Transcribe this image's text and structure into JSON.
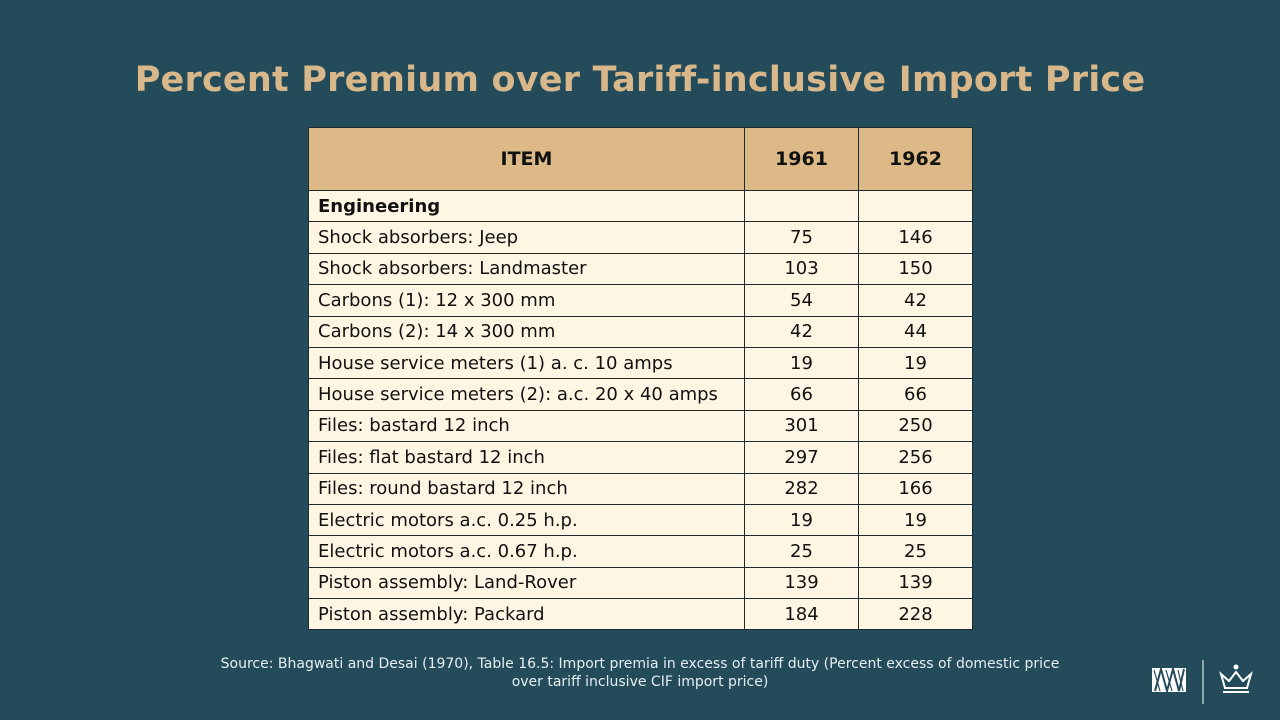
{
  "title": "Percent Premium over Tariff-inclusive Import Price",
  "table": {
    "headers": [
      "ITEM",
      "1961",
      "1962"
    ],
    "section": "Engineering",
    "rows": [
      {
        "item": "Shock absorbers: Jeep",
        "y1961": "75",
        "y1962": "146"
      },
      {
        "item": "Shock absorbers: Landmaster",
        "y1961": "103",
        "y1962": "150"
      },
      {
        "item": "Carbons (1): 12 x 300 mm",
        "y1961": "54",
        "y1962": "42"
      },
      {
        "item": "Carbons (2): 14 x 300 mm",
        "y1961": "42",
        "y1962": "44"
      },
      {
        "item": "House service meters (1) a. c. 10 amps",
        "y1961": "19",
        "y1962": "19"
      },
      {
        "item": "House service meters (2): a.c. 20 x 40 amps",
        "y1961": "66",
        "y1962": "66"
      },
      {
        "item": "Files: bastard 12 inch",
        "y1961": "301",
        "y1962": "250"
      },
      {
        "item": "Files: flat bastard 12 inch",
        "y1961": "297",
        "y1962": "256"
      },
      {
        "item": "Files: round bastard 12 inch",
        "y1961": "282",
        "y1962": "166"
      },
      {
        "item": "Electric motors a.c. 0.25 h.p.",
        "y1961": "19",
        "y1962": "19"
      },
      {
        "item": "Electric motors a.c. 0.67 h.p.",
        "y1961": "25",
        "y1962": "25"
      },
      {
        "item": "Piston assembly: Land-Rover",
        "y1961": "139",
        "y1962": "139"
      },
      {
        "item": "Piston assembly: Packard",
        "y1961": "184",
        "y1962": "228"
      }
    ]
  },
  "source_line1": "Source: Bhagwati and Desai (1970), Table 16.5: Import premia in excess of tariff duty (Percent excess of domestic price",
  "source_line2": "over tariff inclusive CIF import price)",
  "logos": {
    "left": "columbia-monogram-icon",
    "right": "crown-icon"
  },
  "colors": {
    "background": "#234b5a",
    "title": "#d8b78a",
    "header": "#dcb987",
    "cell": "#fef5e2"
  }
}
